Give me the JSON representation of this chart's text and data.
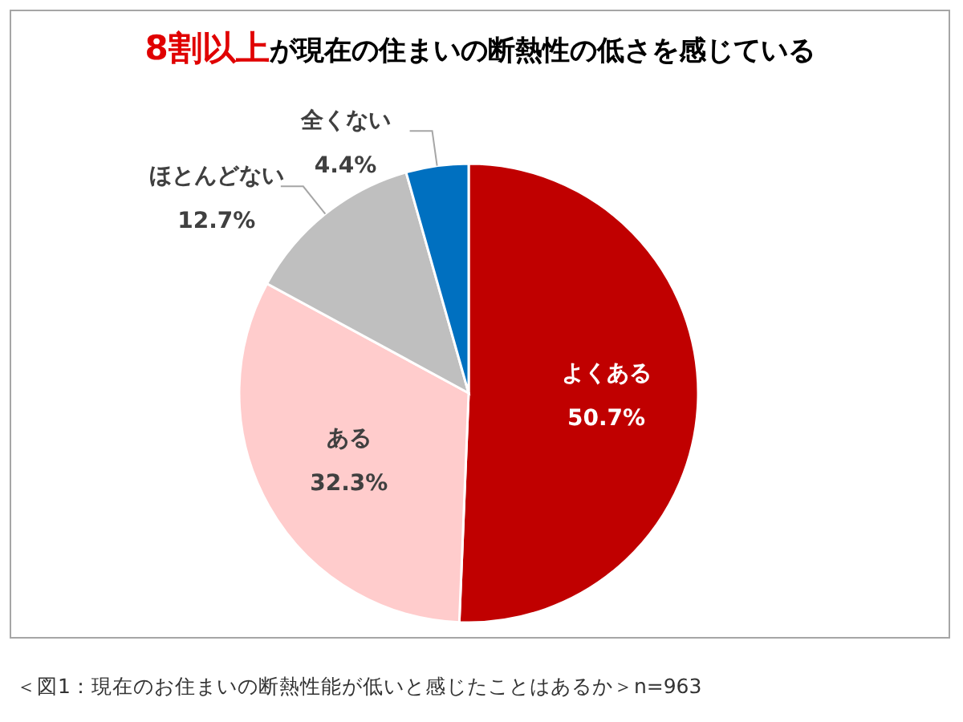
{
  "chart_data": {
    "type": "pie",
    "title": "**8割以上**が現在の住まいの断熱性の低さを感じている",
    "categories": [
      "よくある",
      "ある",
      "ほとんどない",
      "全くない"
    ],
    "values": [
      50.7,
      32.3,
      12.7,
      4.4
    ],
    "value_labels": [
      "50.7%",
      "32.3%",
      "12.7%",
      "4.4%"
    ],
    "colors": [
      "#c00000",
      "#ffcccc",
      "#bfbfbf",
      "#0070c0"
    ],
    "annotations": [
      "＜図1：現在のお住まいの断熱性能が低いと感じたことはあるか＞n=963"
    ]
  }
}
